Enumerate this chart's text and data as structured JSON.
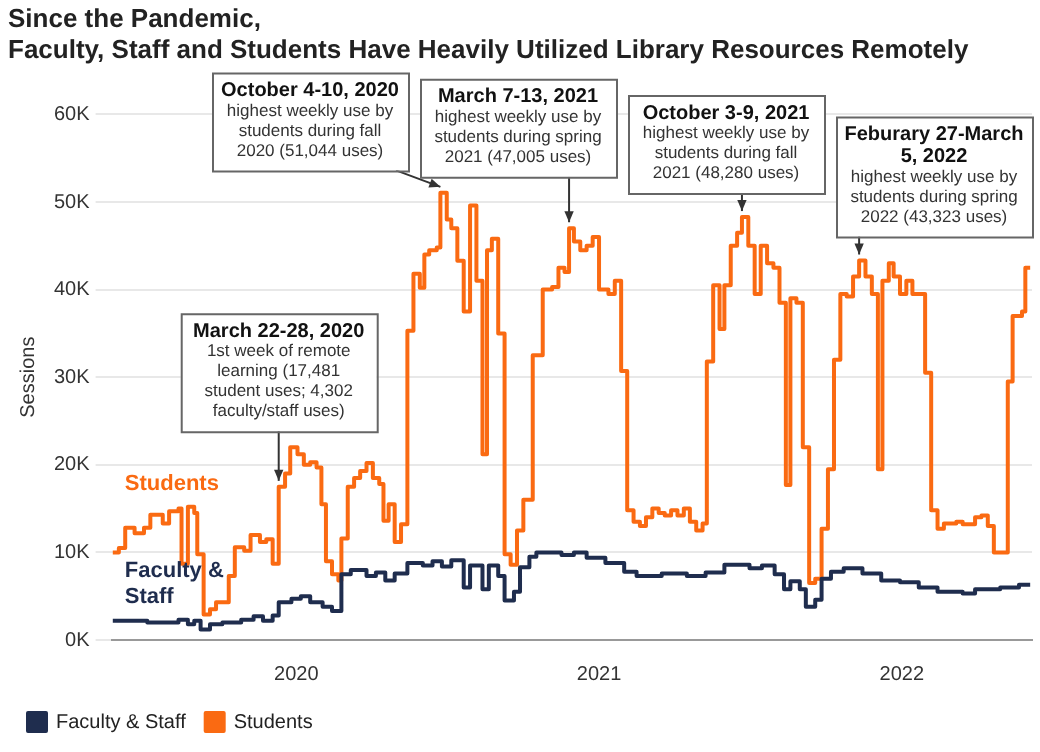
{
  "chart_data": {
    "type": "step",
    "title": "Since the Pandemic,\nFaculty, Staff and Students Have Heavily Utilized Library Resources Remotely",
    "ylabel": "Sessions",
    "xlim": [
      2019.39,
      2022.43
    ],
    "xticks": [
      2020,
      2021,
      2022
    ],
    "ylim": [
      0,
      60000
    ],
    "yticks": [
      {
        "value": 0,
        "label": "0K"
      },
      {
        "value": 10000,
        "label": "10K"
      },
      {
        "value": 20000,
        "label": "20K"
      },
      {
        "value": 30000,
        "label": "30K"
      },
      {
        "value": 40000,
        "label": "40K"
      },
      {
        "value": 50000,
        "label": "50K"
      },
      {
        "value": 60000,
        "label": "60K"
      }
    ],
    "grid": "y",
    "legend": "bottom left",
    "marker": "none",
    "series": [
      {
        "name": "Faculty & Staff",
        "color": "#1f2d4e",
        "x": [
          2019.394,
          2019.508,
          2019.611,
          2019.642,
          2019.663,
          2019.684,
          2019.715,
          2019.756,
          2019.818,
          2019.859,
          2019.89,
          2019.922,
          2019.942,
          2019.984,
          2020.015,
          2020.046,
          2020.087,
          2020.118,
          2020.149,
          2020.18,
          2020.232,
          2020.263,
          2020.294,
          2020.325,
          2020.367,
          2020.418,
          2020.45,
          2020.481,
          2020.512,
          2020.553,
          2020.574,
          2020.615,
          2020.636,
          2020.667,
          2020.688,
          2020.719,
          2020.739,
          2020.77,
          2020.793,
          2020.876,
          2020.917,
          2020.959,
          2021.021,
          2021.083,
          2021.124,
          2021.207,
          2021.29,
          2021.352,
          2021.414,
          2021.497,
          2021.538,
          2021.58,
          2021.611,
          2021.632,
          2021.663,
          2021.683,
          2021.714,
          2021.735,
          2021.766,
          2021.808,
          2021.87,
          2021.932,
          2021.994,
          2022.056,
          2022.118,
          2022.201,
          2022.242,
          2022.325,
          2022.387,
          2022.424
        ],
        "values": [
          2200,
          2000,
          2300,
          1800,
          2200,
          1200,
          1800,
          2000,
          2300,
          2700,
          2200,
          2800,
          4302,
          4700,
          5000,
          4300,
          3800,
          3300,
          7500,
          8000,
          7300,
          7700,
          6800,
          7600,
          8800,
          8500,
          9000,
          8400,
          9100,
          6000,
          8500,
          5800,
          8500,
          7300,
          4500,
          5500,
          8300,
          9500,
          10000,
          9700,
          10000,
          9400,
          8800,
          7800,
          7300,
          7600,
          7300,
          7700,
          8600,
          8200,
          8500,
          7500,
          5800,
          6700,
          5800,
          3800,
          4600,
          7000,
          7800,
          8200,
          7600,
          6800,
          6600,
          6000,
          5500,
          5300,
          5800,
          6000,
          6300,
          6300
        ]
      },
      {
        "name": "Students",
        "color": "#fa6a12",
        "x": [
          2019.394,
          2019.414,
          2019.435,
          2019.466,
          2019.497,
          2019.518,
          2019.559,
          2019.58,
          2019.611,
          2019.621,
          2019.642,
          2019.663,
          2019.673,
          2019.694,
          2019.715,
          2019.735,
          2019.777,
          2019.797,
          2019.828,
          2019.849,
          2019.88,
          2019.901,
          2019.922,
          2019.942,
          2019.963,
          2019.98,
          2020.004,
          2020.025,
          2020.046,
          2020.067,
          2020.083,
          2020.098,
          2020.118,
          2020.139,
          2020.149,
          2020.17,
          2020.191,
          2020.211,
          2020.232,
          2020.253,
          2020.274,
          2020.288,
          2020.305,
          2020.325,
          2020.346,
          2020.367,
          2020.387,
          2020.408,
          2020.423,
          2020.439,
          2020.464,
          2020.476,
          2020.497,
          2020.512,
          2020.532,
          2020.553,
          2020.574,
          2020.595,
          2020.615,
          2020.63,
          2020.646,
          2020.667,
          2020.688,
          2020.708,
          2020.729,
          2020.75,
          2020.781,
          2020.814,
          2020.845,
          2020.866,
          2020.886,
          2020.901,
          2020.917,
          2020.938,
          2020.959,
          2020.979,
          2021.0,
          2021.031,
          2021.052,
          2021.073,
          2021.093,
          2021.114,
          2021.135,
          2021.155,
          2021.176,
          2021.197,
          2021.217,
          2021.238,
          2021.259,
          2021.28,
          2021.3,
          2021.321,
          2021.342,
          2021.356,
          2021.377,
          2021.398,
          2021.414,
          2021.435,
          2021.456,
          2021.472,
          2021.493,
          2021.514,
          2021.534,
          2021.555,
          2021.576,
          2021.596,
          2021.617,
          2021.632,
          2021.652,
          2021.673,
          2021.694,
          2021.714,
          2021.735,
          2021.756,
          2021.776,
          2021.797,
          2021.818,
          2021.839,
          2021.859,
          2021.88,
          2021.901,
          2021.921,
          2021.936,
          2021.957,
          2021.973,
          2021.994,
          2022.015,
          2022.035,
          2022.056,
          2022.077,
          2022.097,
          2022.118,
          2022.139,
          2022.18,
          2022.201,
          2022.242,
          2022.263,
          2022.284,
          2022.304,
          2022.35,
          2022.366,
          2022.397,
          2022.408,
          2022.424
        ],
        "values": [
          10000,
          10500,
          12800,
          12200,
          12800,
          14300,
          13300,
          14700,
          15000,
          8700,
          15200,
          14500,
          9800,
          2900,
          3500,
          4300,
          7300,
          10600,
          10200,
          12000,
          11200,
          11500,
          8700,
          17481,
          19000,
          22000,
          21200,
          20000,
          20300,
          19700,
          15500,
          9000,
          7500,
          6800,
          11600,
          17500,
          18500,
          19300,
          20200,
          18500,
          17800,
          13600,
          15500,
          11200,
          13200,
          35300,
          41800,
          40200,
          44000,
          44500,
          44800,
          51044,
          48000,
          47000,
          43300,
          37500,
          49600,
          41000,
          21200,
          44500,
          45800,
          35000,
          9800,
          8600,
          12500,
          16000,
          32500,
          40000,
          40300,
          42500,
          42000,
          47005,
          45500,
          44500,
          45000,
          46000,
          40000,
          39500,
          41000,
          30700,
          14800,
          13500,
          13000,
          14000,
          15000,
          14500,
          14200,
          14800,
          14200,
          15000,
          13500,
          12500,
          13300,
          31800,
          40500,
          35500,
          40500,
          45000,
          46500,
          48280,
          45000,
          39500,
          45000,
          43000,
          42500,
          38500,
          17700,
          39000,
          38500,
          22000,
          6500,
          7000,
          12700,
          19500,
          32000,
          39500,
          39200,
          41500,
          43323,
          41500,
          39500,
          19500,
          41000,
          43000,
          41500,
          39500,
          41000,
          39500,
          39500,
          30500,
          14800,
          12700,
          13300,
          13500,
          13200,
          14000,
          14200,
          13000,
          10000,
          29500,
          37000,
          37500,
          42500,
          42500
        ]
      }
    ],
    "annotations": [
      {
        "text": "March 22-28, 2020\n1st week of remote learning (17,481 student uses; 4,302 faculty/staff uses)",
        "x": 2019.942,
        "y": 17481
      },
      {
        "text": "October 4-10, 2020\nhighest weekly use by students during fall 2020 (51,044 uses)",
        "x": 2020.476,
        "y": 51044
      },
      {
        "text": "March 7-13, 2021\nhighest weekly use by students during spring 2021 (47,005 uses)",
        "x": 2020.901,
        "y": 47005
      },
      {
        "text": "October 3-9, 2021\nhighest weekly use by students during fall 2021 (48,280 uses)",
        "x": 2021.472,
        "y": 48280
      },
      {
        "text": "Feburary 27-March 5, 2022\nhighest weekly use by students during spring 2022 (43,323 uses)",
        "x": 2021.859,
        "y": 43323
      }
    ]
  }
}
